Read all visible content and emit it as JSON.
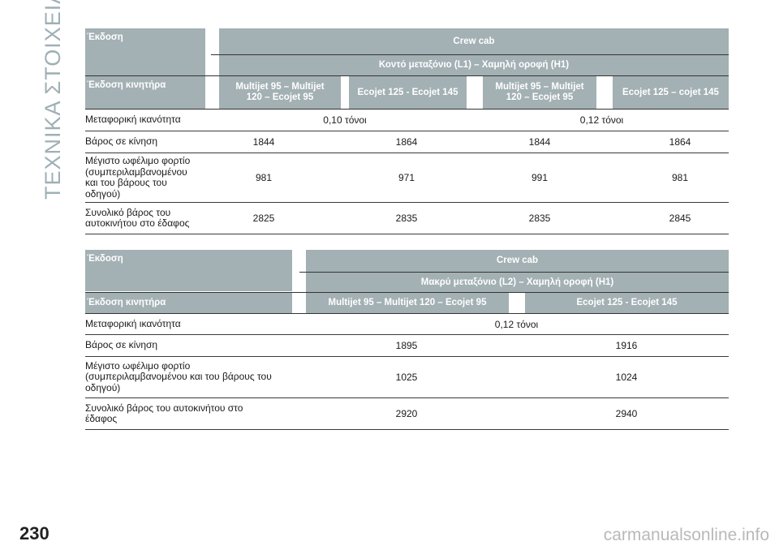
{
  "section_title": "ΤΕΧΝΙΚΑ ΣΤΟΙΧΕΙΑ",
  "page_number": "230",
  "watermark": "carmanualsonline.info",
  "table1": {
    "version_label": "Έκδοση",
    "crew_cab": "Crew cab",
    "body_type": "Κοντό μεταξόνιο (L1) – Χαμηλή οροφή (H1)",
    "engine_label": "Έκδοση κινητήρα",
    "engines": [
      "Multijet 95 – Multijet\n120 – Ecojet 95",
      "Ecojet 125 - Ecojet 145",
      "Multijet 95 – Multijet\n120 – Ecojet 95",
      "Ecojet 125 – cojet 145"
    ],
    "rows": [
      {
        "label": "Μεταφορική ικανότητα",
        "values": [
          "0,10 τόνοι",
          "0,12 τόνοι"
        ]
      },
      {
        "label": "Βάρος σε κίνηση",
        "values": [
          "1844",
          "1864",
          "1844",
          "1864"
        ]
      },
      {
        "label": "Μέγιστο ωφέλιμο φορτίο\n(συμπεριλαμβανομένου\nκαι του βάρους του\nοδηγού)",
        "values": [
          "981",
          "971",
          "991",
          "981"
        ]
      },
      {
        "label": "Συνολικό βάρος του\nαυτοκινήτου στο έδαφος",
        "values": [
          "2825",
          "2835",
          "2835",
          "2845"
        ]
      }
    ]
  },
  "table2": {
    "version_label": "Έκδοση",
    "crew_cab": "Crew cab",
    "body_type": "Μακρύ μεταξόνιο (L2) – Χαμηλή οροφή (H1)",
    "engine_label": "Έκδοση κινητήρα",
    "engines": [
      "Multijet 95 – Multijet 120 – Ecojet 95",
      "Ecojet 125 - Ecojet 145"
    ],
    "rows": [
      {
        "label": "Μεταφορική ικανότητα",
        "values": [
          "0,12 τόνοι"
        ]
      },
      {
        "label": "Βάρος σε κίνηση",
        "values": [
          "1895",
          "1916"
        ]
      },
      {
        "label": "Μέγιστο ωφέλιμο φορτίο\n(συμπεριλαμβανομένου και του βάρους του\nοδηγού)",
        "values": [
          "1025",
          "1024"
        ]
      },
      {
        "label": "Συνολικό βάρος του αυτοκινήτου στο\nέδαφος",
        "values": [
          "2920",
          "2940"
        ]
      }
    ]
  }
}
